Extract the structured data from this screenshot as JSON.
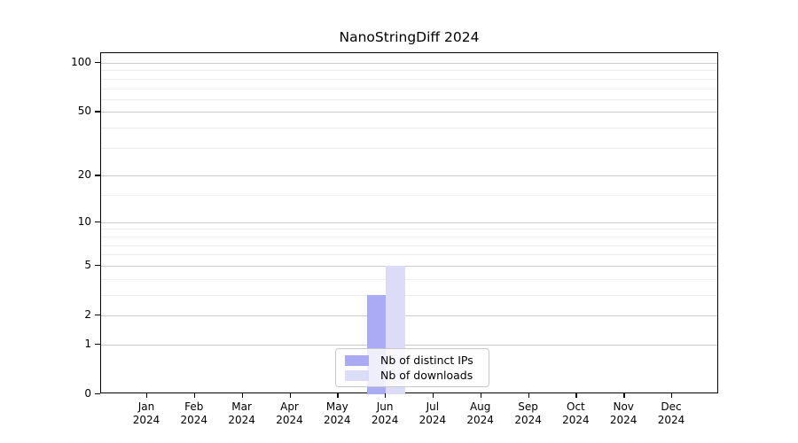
{
  "figure": {
    "title": "NanoStringDiff 2024"
  },
  "chart_data": {
    "type": "bar",
    "title": "NanoStringDiff 2024",
    "x_categories": [
      "Jan 2024",
      "Feb 2024",
      "Mar 2024",
      "Apr 2024",
      "May 2024",
      "Jun 2024",
      "Jul 2024",
      "Aug 2024",
      "Sep 2024",
      "Oct 2024",
      "Nov 2024",
      "Dec 2024"
    ],
    "x_tick_months": [
      "Jan",
      "Feb",
      "Mar",
      "Apr",
      "May",
      "Jun",
      "Jul",
      "Aug",
      "Sep",
      "Oct",
      "Nov",
      "Dec"
    ],
    "x_tick_year": "2024",
    "series": [
      {
        "name": "Nb of distinct IPs",
        "color": "#aaaaf5",
        "values": [
          0,
          0,
          0,
          0,
          0,
          3,
          0,
          0,
          0,
          0,
          0,
          0
        ]
      },
      {
        "name": "Nb of downloads",
        "color": "#dcdcf8",
        "values": [
          0,
          0,
          0,
          0,
          0,
          5,
          0,
          0,
          0,
          0,
          0,
          0
        ]
      }
    ],
    "y_axis": {
      "scale": "log10(1+y)",
      "major_ticks": [
        0,
        1,
        2,
        5,
        10,
        20,
        50,
        100
      ],
      "minor_ticks": [
        3,
        4,
        6,
        7,
        8,
        9,
        15,
        30,
        40,
        60,
        70,
        80,
        90
      ],
      "ylim": [
        0,
        115
      ]
    },
    "grid": "horizontal",
    "legend_position": "bottom-center"
  },
  "legend": {
    "items": [
      {
        "label": "Nb of distinct IPs",
        "color": "#aaaaf5"
      },
      {
        "label": "Nb of downloads",
        "color": "#dcdcf8"
      }
    ]
  },
  "colors": {
    "background": "#ffffff",
    "spine": "#000000",
    "major_grid": "#cbcbcb",
    "minor_grid": "#ededed",
    "bar_distinct_ips": "#aaaaf5",
    "bar_downloads": "#dcdcf8",
    "legend_border": "#c8c8c8",
    "text": "#000000"
  }
}
